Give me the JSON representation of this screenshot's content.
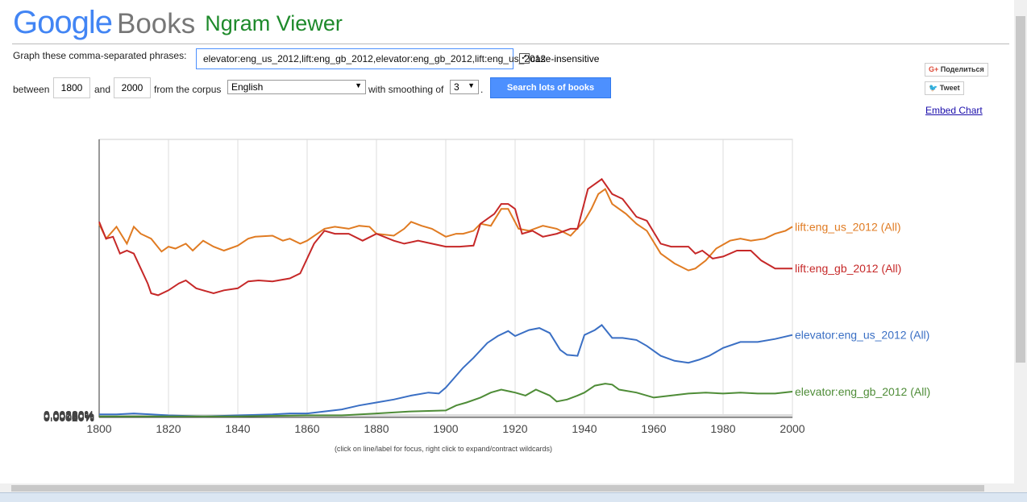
{
  "header": {
    "logo_google": "Google",
    "logo_books": "Books",
    "app_title": "Ngram Viewer"
  },
  "form": {
    "phrases_label": "Graph these comma-separated phrases:",
    "phrases_value": "elevator:eng_us_2012,lift:eng_gb_2012,elevator:eng_gb_2012,lift:eng_us_2012",
    "case_insensitive_label": "case-insensitive",
    "between_label": "between",
    "start_year": "1800",
    "and_label": "and",
    "end_year": "2000",
    "corpus_label": "from the corpus",
    "corpus_value": "English",
    "smoothing_label": "with smoothing of",
    "smoothing_value": "3",
    "search_button": "Search lots of books"
  },
  "share": {
    "gplus_label": "Поделиться",
    "tweet_label": "Tweet",
    "embed_label": "Embed Chart"
  },
  "footer_note": "(click on line/label for focus, right click to expand/contract wildcards)",
  "chart_data": {
    "type": "line",
    "xlim": [
      1800,
      2000
    ],
    "ylim": [
      0,
      0.0028
    ],
    "x_ticks": [
      "1800",
      "1820",
      "1840",
      "1860",
      "1880",
      "1900",
      "1920",
      "1940",
      "1960",
      "1980",
      "2000"
    ],
    "y_ticks": [
      "0.00000%",
      "0.00020%",
      "0.00040%",
      "0.00060%",
      "0.00080%",
      "0.00100%",
      "0.00120%",
      "0.00140%",
      "0.00160%",
      "0.00180%",
      "0.00200%",
      "0.00220%",
      "0.00240%",
      "0.00260%",
      "0.00280%"
    ],
    "grid": true,
    "series": [
      {
        "name": "lift:eng_us_2012 (All)",
        "color": "#e07b22",
        "x": [
          1800,
          1802,
          1805,
          1808,
          1810,
          1812,
          1815,
          1818,
          1820,
          1822,
          1825,
          1827,
          1830,
          1833,
          1836,
          1840,
          1843,
          1845,
          1850,
          1853,
          1855,
          1858,
          1860,
          1865,
          1868,
          1872,
          1875,
          1878,
          1880,
          1885,
          1888,
          1890,
          1893,
          1896,
          1900,
          1903,
          1905,
          1908,
          1910,
          1913,
          1916,
          1918,
          1921,
          1924,
          1928,
          1932,
          1936,
          1940,
          1942,
          1944,
          1946,
          1948,
          1952,
          1955,
          1958,
          1962,
          1966,
          1970,
          1972,
          1975,
          1978,
          1982,
          1985,
          1988,
          1992,
          1995,
          1998,
          2000
        ],
        "values": [
          0.00195,
          0.0018,
          0.00192,
          0.00175,
          0.00192,
          0.00185,
          0.0018,
          0.00167,
          0.00172,
          0.0017,
          0.00175,
          0.00168,
          0.00178,
          0.00172,
          0.00168,
          0.00173,
          0.0018,
          0.00182,
          0.00183,
          0.00178,
          0.0018,
          0.00175,
          0.00178,
          0.0019,
          0.00192,
          0.0019,
          0.00193,
          0.00192,
          0.00185,
          0.00183,
          0.0019,
          0.00197,
          0.00193,
          0.0019,
          0.00182,
          0.00185,
          0.00185,
          0.00188,
          0.00195,
          0.00193,
          0.0021,
          0.0021,
          0.0019,
          0.00188,
          0.00193,
          0.0019,
          0.00183,
          0.00198,
          0.0021,
          0.00225,
          0.0023,
          0.00215,
          0.00205,
          0.00195,
          0.00188,
          0.00165,
          0.00155,
          0.00148,
          0.0015,
          0.00158,
          0.0017,
          0.00178,
          0.0018,
          0.00178,
          0.0018,
          0.00185,
          0.00188,
          0.00192
        ]
      },
      {
        "name": "lift:eng_gb_2012 (All)",
        "color": "#c62828",
        "x": [
          1800,
          1802,
          1804,
          1806,
          1808,
          1810,
          1812,
          1814,
          1815,
          1817,
          1820,
          1823,
          1825,
          1828,
          1830,
          1833,
          1836,
          1840,
          1843,
          1846,
          1850,
          1855,
          1858,
          1862,
          1865,
          1868,
          1872,
          1876,
          1880,
          1885,
          1888,
          1892,
          1896,
          1900,
          1904,
          1908,
          1910,
          1914,
          1916,
          1918,
          1920,
          1922,
          1925,
          1928,
          1932,
          1936,
          1938,
          1941,
          1943,
          1945,
          1948,
          1951,
          1955,
          1958,
          1962,
          1965,
          1970,
          1972,
          1974,
          1977,
          1980,
          1984,
          1988,
          1991,
          1995,
          2000
        ],
        "values": [
          0.00197,
          0.0018,
          0.00182,
          0.00165,
          0.00168,
          0.00165,
          0.0015,
          0.00135,
          0.00125,
          0.00123,
          0.00128,
          0.00135,
          0.00138,
          0.0013,
          0.00128,
          0.00125,
          0.00128,
          0.0013,
          0.00137,
          0.00138,
          0.00137,
          0.0014,
          0.00145,
          0.00175,
          0.00188,
          0.00185,
          0.00185,
          0.00178,
          0.00185,
          0.00178,
          0.00175,
          0.00178,
          0.00175,
          0.00172,
          0.00172,
          0.00173,
          0.00195,
          0.00205,
          0.00215,
          0.00215,
          0.0021,
          0.00185,
          0.00188,
          0.00182,
          0.00185,
          0.0019,
          0.0019,
          0.0023,
          0.00235,
          0.0024,
          0.00225,
          0.0022,
          0.00202,
          0.00198,
          0.00175,
          0.00172,
          0.00172,
          0.00165,
          0.00168,
          0.0016,
          0.00162,
          0.00168,
          0.00168,
          0.00158,
          0.0015,
          0.0015
        ]
      },
      {
        "name": "elevator:eng_us_2012 (All)",
        "color": "#3a6fc4",
        "x": [
          1800,
          1805,
          1810,
          1815,
          1820,
          1830,
          1840,
          1850,
          1855,
          1860,
          1865,
          1870,
          1875,
          1880,
          1885,
          1890,
          1895,
          1898,
          1900,
          1905,
          1908,
          1912,
          1915,
          1918,
          1920,
          1924,
          1927,
          1930,
          1933,
          1935,
          1938,
          1940,
          1943,
          1945,
          1948,
          1951,
          1955,
          1958,
          1962,
          1966,
          1970,
          1973,
          1976,
          1980,
          1985,
          1990,
          1995,
          2000
        ],
        "values": [
          3e-05,
          3e-05,
          4e-05,
          3e-05,
          2e-05,
          1e-05,
          2e-05,
          3e-05,
          4e-05,
          4e-05,
          6e-05,
          8e-05,
          0.00012,
          0.00015,
          0.00018,
          0.00022,
          0.00025,
          0.00024,
          0.0003,
          0.0005,
          0.0006,
          0.00075,
          0.00082,
          0.00087,
          0.00082,
          0.00088,
          0.0009,
          0.00085,
          0.00068,
          0.00063,
          0.00062,
          0.00083,
          0.00088,
          0.00093,
          0.0008,
          0.0008,
          0.00078,
          0.00072,
          0.00062,
          0.00057,
          0.00055,
          0.00058,
          0.00062,
          0.0007,
          0.00076,
          0.00076,
          0.00079,
          0.00083
        ]
      },
      {
        "name": "elevator:eng_gb_2012 (All)",
        "color": "#4e8c37",
        "x": [
          1800,
          1810,
          1820,
          1840,
          1860,
          1870,
          1880,
          1890,
          1900,
          1903,
          1906,
          1910,
          1913,
          1916,
          1920,
          1923,
          1926,
          1930,
          1932,
          1935,
          1938,
          1940,
          1943,
          1946,
          1948,
          1950,
          1955,
          1960,
          1965,
          1970,
          1975,
          1980,
          1985,
          1990,
          1995,
          2000
        ],
        "values": [
          1e-05,
          1e-05,
          1e-05,
          1e-05,
          2e-05,
          2e-05,
          4e-05,
          6e-05,
          7e-05,
          0.00012,
          0.00015,
          0.0002,
          0.00025,
          0.00028,
          0.00025,
          0.00022,
          0.00028,
          0.00022,
          0.00016,
          0.00018,
          0.00022,
          0.00025,
          0.00032,
          0.00034,
          0.00033,
          0.00028,
          0.00025,
          0.0002,
          0.00022,
          0.00024,
          0.00025,
          0.00024,
          0.00025,
          0.00024,
          0.00024,
          0.00026
        ]
      }
    ]
  }
}
